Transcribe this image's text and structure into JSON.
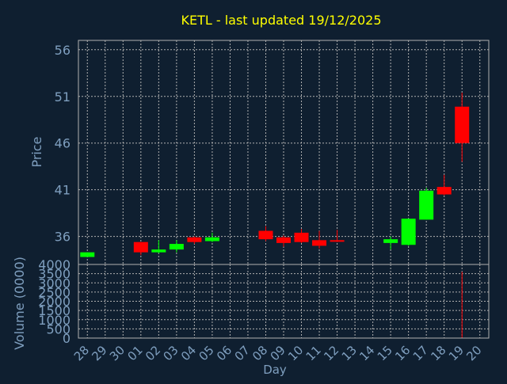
{
  "colors": {
    "background": "#0f1f30",
    "title": "#ffff00",
    "axis_text": "#7f9fbf",
    "grid": "#b0b0b0",
    "frame": "#b0b0b0",
    "up": "#00ff00",
    "down": "#ff0000"
  },
  "chart_data": [
    {
      "type": "candlestick",
      "title": "KETL - last updated 19/12/2025",
      "ylabel": "Price",
      "xlabel": "",
      "ylim": [
        33,
        57
      ],
      "yticks": [
        36,
        41,
        46,
        51,
        56
      ],
      "grid": true,
      "categories": [
        "28",
        "29",
        "30",
        "01",
        "02",
        "03",
        "04",
        "05",
        "06",
        "07",
        "08",
        "09",
        "10",
        "11",
        "12",
        "13",
        "14",
        "15",
        "16",
        "17",
        "18",
        "19",
        "20"
      ],
      "candles": [
        {
          "x": "28",
          "open": 33.8,
          "close": 34.3,
          "high": 34.3,
          "low": 33.8
        },
        {
          "x": "01",
          "open": 35.4,
          "close": 34.3,
          "high": 35.4,
          "low": 34.0
        },
        {
          "x": "02",
          "open": 34.3,
          "close": 34.6,
          "high": 35.6,
          "low": 34.2
        },
        {
          "x": "03",
          "open": 34.6,
          "close": 35.2,
          "high": 35.6,
          "low": 34.3
        },
        {
          "x": "04",
          "open": 35.9,
          "close": 35.4,
          "high": 36.0,
          "low": 35.2
        },
        {
          "x": "05",
          "open": 35.5,
          "close": 35.9,
          "high": 36.4,
          "low": 35.4
        },
        {
          "x": "08",
          "open": 36.6,
          "close": 35.7,
          "high": 37.1,
          "low": 35.5
        },
        {
          "x": "09",
          "open": 35.9,
          "close": 35.3,
          "high": 36.1,
          "low": 34.9
        },
        {
          "x": "10",
          "open": 36.4,
          "close": 35.4,
          "high": 36.8,
          "low": 35.3
        },
        {
          "x": "11",
          "open": 35.6,
          "close": 35.0,
          "high": 36.6,
          "low": 34.7
        },
        {
          "x": "12",
          "open": 35.6,
          "close": 35.5,
          "high": 36.7,
          "low": 35.4
        },
        {
          "x": "15",
          "open": 35.3,
          "close": 35.7,
          "high": 36.0,
          "low": 34.6
        },
        {
          "x": "16",
          "open": 35.1,
          "close": 37.9,
          "high": 37.9,
          "low": 35.0
        },
        {
          "x": "17",
          "open": 37.8,
          "close": 40.9,
          "high": 41.2,
          "low": 37.8
        },
        {
          "x": "18",
          "open": 41.3,
          "close": 40.5,
          "high": 42.6,
          "low": 40.4
        },
        {
          "x": "19",
          "open": 49.9,
          "close": 46.0,
          "high": 51.4,
          "low": 44.0
        }
      ]
    },
    {
      "type": "bar",
      "ylabel": "Volume (0000)",
      "xlabel": "Day",
      "ylim": [
        0,
        4000
      ],
      "yticks": [
        0,
        500,
        1000,
        1500,
        2000,
        2500,
        3000,
        3500,
        4000
      ],
      "grid": true,
      "categories": [
        "28",
        "29",
        "30",
        "01",
        "02",
        "03",
        "04",
        "05",
        "06",
        "07",
        "08",
        "09",
        "10",
        "11",
        "12",
        "13",
        "14",
        "15",
        "16",
        "17",
        "18",
        "19",
        "20"
      ],
      "values": [
        0,
        0,
        0,
        0,
        0,
        0,
        0,
        0,
        0,
        0,
        0,
        0,
        0,
        0,
        0,
        0,
        0,
        0,
        0,
        0,
        0,
        3600,
        0
      ]
    }
  ]
}
